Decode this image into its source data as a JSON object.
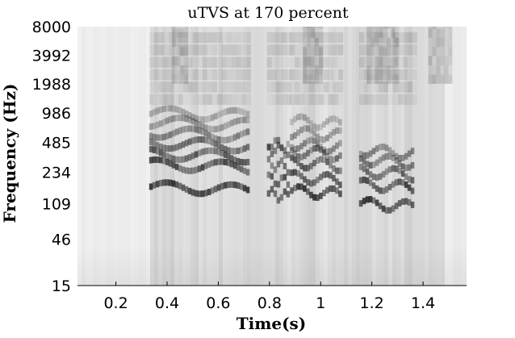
{
  "chart_data": {
    "type": "heatmap",
    "title": "uTVS at 170 percent",
    "xlabel": "Time(s)",
    "ylabel": "Frequency (Hz)",
    "xlim": [
      0.05,
      1.57
    ],
    "ylim": [
      15,
      8000
    ],
    "y_scale": "log",
    "x_ticks": [
      {
        "value": 0.2,
        "label": "0.2"
      },
      {
        "value": 0.4,
        "label": "0.4"
      },
      {
        "value": 0.6,
        "label": "0.6"
      },
      {
        "value": 0.8,
        "label": "0.8"
      },
      {
        "value": 1.0,
        "label": "1"
      },
      {
        "value": 1.2,
        "label": "1.2"
      },
      {
        "value": 1.4,
        "label": "1.4"
      }
    ],
    "y_ticks": [
      {
        "value": 15,
        "label": "15"
      },
      {
        "value": 46,
        "label": "46"
      },
      {
        "value": 109,
        "label": "109"
      },
      {
        "value": 234,
        "label": "234"
      },
      {
        "value": 485,
        "label": "485"
      },
      {
        "value": 986,
        "label": "986"
      },
      {
        "value": 1988,
        "label": "1988"
      },
      {
        "value": 3992,
        "label": "3992"
      },
      {
        "value": 8000,
        "label": "8000"
      }
    ],
    "colormap": "gray-reversed",
    "grid": false,
    "voiced_segments": [
      {
        "start": 0.33,
        "end": 0.71,
        "harmonics": [
          165,
          285,
          370,
          480,
          620,
          800,
          1000
        ]
      },
      {
        "start": 0.79,
        "end": 0.87,
        "harmonics": [
          140,
          200,
          290,
          420,
          480
        ]
      },
      {
        "start": 0.88,
        "end": 1.07,
        "harmonics": [
          150,
          210,
          300,
          390,
          470,
          620,
          820
        ]
      },
      {
        "start": 1.15,
        "end": 1.36,
        "harmonics": [
          110,
          175,
          240,
          320,
          400
        ]
      }
    ]
  }
}
